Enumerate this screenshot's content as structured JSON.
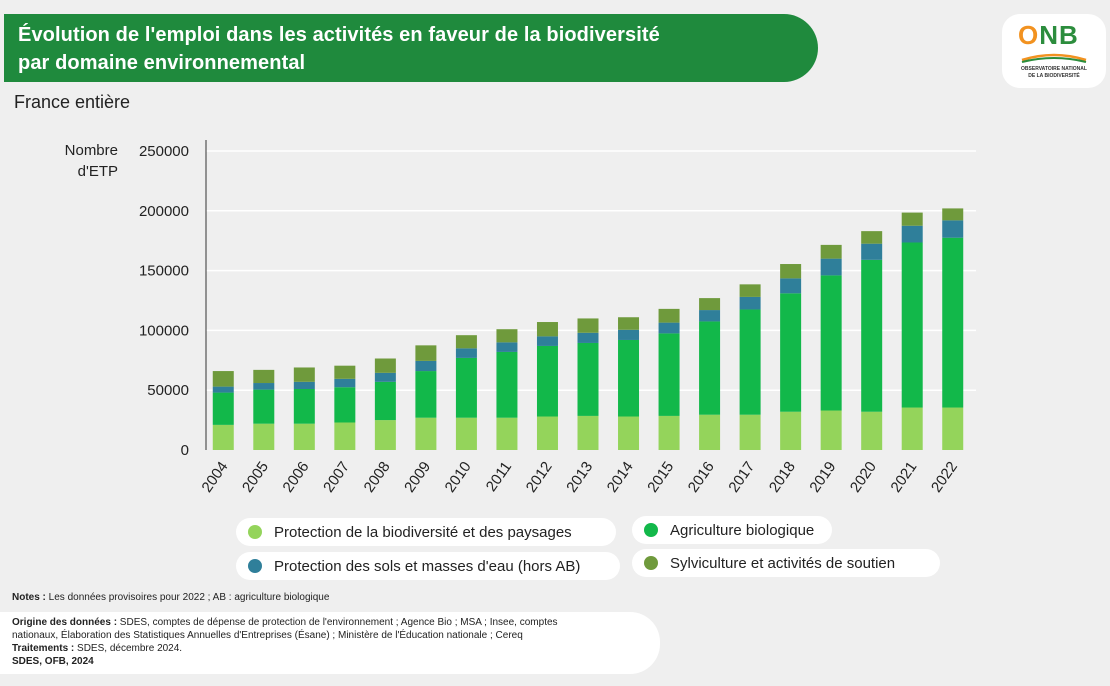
{
  "header": {
    "title_line1": "Évolution de l'emploi dans les activités en faveur de la biodiversité",
    "title_line2": "par domaine environnemental",
    "subtitle": "France entière"
  },
  "logo": {
    "word_o": "O",
    "word_nb": "NB",
    "line1": "OBSERVATOIRE NATIONAL",
    "line2": "DE LA BIODIVERSITÉ"
  },
  "colors": {
    "banner": "#1f8a3d",
    "protection_biodiversite": "#94d45b",
    "agriculture_biologique": "#12b84a",
    "protection_sols": "#2f7f9a",
    "sylviculture": "#6f9a3c"
  },
  "chart_data": {
    "type": "bar",
    "stacked": true,
    "ylabel_line1": "Nombre",
    "ylabel_line2": "d'ETP",
    "ylim": [
      0,
      250000
    ],
    "yticks": [
      "0",
      "50000",
      "100000",
      "150000",
      "200000",
      "250000"
    ],
    "grid": true,
    "categories": [
      "2004",
      "2005",
      "2006",
      "2007",
      "2008",
      "2009",
      "2010",
      "2011",
      "2012",
      "2013",
      "2014",
      "2015",
      "2016",
      "2017",
      "2018",
      "2019",
      "2020",
      "2021",
      "2022"
    ],
    "series": [
      {
        "name": "Protection de la biodiversité et des paysages",
        "color": "#94d45b",
        "values": [
          21000,
          22000,
          22000,
          23000,
          25000,
          27000,
          27000,
          27000,
          28000,
          28500,
          28000,
          28500,
          29500,
          29500,
          32000,
          33000,
          32000,
          35500,
          35500
        ]
      },
      {
        "name": "Agriculture biologique",
        "color": "#12b84a",
        "values": [
          27000,
          28500,
          29000,
          29500,
          32000,
          39000,
          50000,
          55000,
          59000,
          61000,
          64000,
          69000,
          78000,
          88000,
          99000,
          113000,
          127000,
          138000,
          142000
        ]
      },
      {
        "name": "Protection des sols et masses d'eau (hors AB)",
        "color": "#2f7f9a",
        "values": [
          5000,
          5500,
          6000,
          7000,
          7500,
          8500,
          8000,
          8000,
          8000,
          8500,
          8500,
          9000,
          9500,
          10500,
          12500,
          14000,
          13500,
          14000,
          14500
        ]
      },
      {
        "name": "Sylviculture et activités de soutien",
        "color": "#6f9a3c",
        "values": [
          13000,
          11000,
          12000,
          11000,
          12000,
          13000,
          11000,
          11000,
          12000,
          12000,
          10500,
          11500,
          10000,
          10500,
          12000,
          11500,
          10500,
          11000,
          10000
        ]
      }
    ]
  },
  "legend": [
    {
      "label": "Protection de la biodiversité et des paysages",
      "color": "#94d45b"
    },
    {
      "label": "Agriculture biologique",
      "color": "#12b84a"
    },
    {
      "label": "Protection des sols et masses d'eau (hors AB)",
      "color": "#2f7f9a"
    },
    {
      "label": "Sylviculture et activités de soutien",
      "color": "#6f9a3c"
    }
  ],
  "footer": {
    "notes_label": "Notes :",
    "notes_text": " Les données provisoires pour 2022 ; AB : agriculture biologique",
    "origin_label": "Origine des données :",
    "origin_text1": " SDES, comptes de dépense de protection de l'environnement ; Agence Bio ; MSA ; Insee, comptes",
    "origin_text2": "nationaux, Élaboration des Statistiques Annuelles d'Entreprises (Ésane) ; Ministère de l'Éducation nationale ; Cereq",
    "treat_label": "Traitements :",
    "treat_text": " SDES, décembre 2024.",
    "credit": "SDES, OFB, 2024"
  }
}
